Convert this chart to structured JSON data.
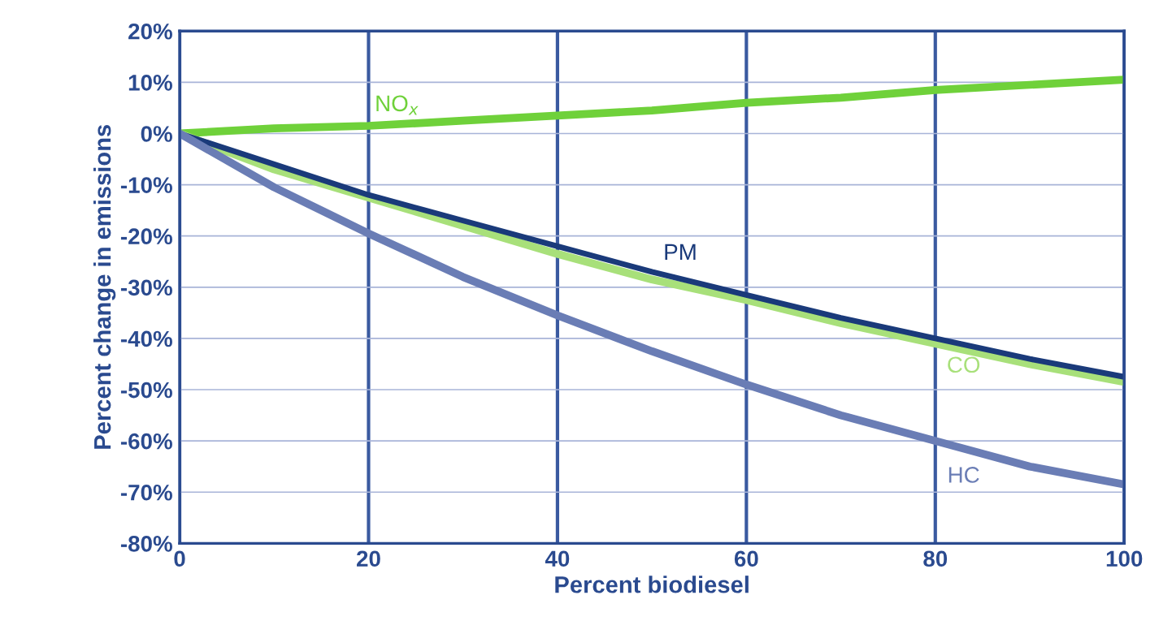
{
  "chart_data": {
    "type": "line",
    "xlabel": "Percent biodiesel",
    "ylabel": "Percent change in emissions",
    "x": [
      0,
      10,
      20,
      30,
      40,
      50,
      60,
      70,
      80,
      90,
      100
    ],
    "series": [
      {
        "name": "NO$_{x}$",
        "color": "#6fd13a",
        "values": [
          0,
          1,
          1.5,
          2.5,
          3.5,
          4.5,
          6,
          7,
          8.5,
          9.5,
          10.5
        ]
      },
      {
        "name": "CO",
        "color": "#a8e07a",
        "values": [
          0,
          -7,
          -12.5,
          -18,
          -23.5,
          -28.5,
          -32.5,
          -37,
          -41,
          -45,
          -48.5
        ]
      },
      {
        "name": "PM",
        "color": "#1a3a7a",
        "values": [
          0,
          -6,
          -12,
          -17,
          -22,
          -27,
          -31.5,
          -36,
          -40,
          -44,
          -47.5
        ]
      },
      {
        "name": "HC",
        "color": "#6a7db5",
        "values": [
          0,
          -10.5,
          -19.5,
          -28,
          -35.5,
          -42.5,
          -49,
          -55,
          -60,
          -65,
          -68.5
        ]
      }
    ],
    "xlim": [
      0,
      100
    ],
    "xticks": [
      0,
      20,
      40,
      60,
      80,
      100
    ],
    "ylim": [
      -80,
      20
    ],
    "yticks": [
      {
        "value": 20,
        "label": "20%"
      },
      {
        "value": 10,
        "label": "10%"
      },
      {
        "value": 0,
        "label": "0%"
      },
      {
        "value": -10,
        "label": "-10%"
      },
      {
        "value": -20,
        "label": "-20%"
      },
      {
        "value": -30,
        "label": "-30%"
      },
      {
        "value": -40,
        "label": "-40%"
      },
      {
        "value": -50,
        "label": "-50%"
      },
      {
        "value": -60,
        "label": "-60%"
      },
      {
        "value": -70,
        "label": "-70%"
      },
      {
        "value": -80,
        "label": "-80%"
      }
    ],
    "grid": true,
    "legend": false,
    "marker": "none",
    "line_style": "solid"
  }
}
